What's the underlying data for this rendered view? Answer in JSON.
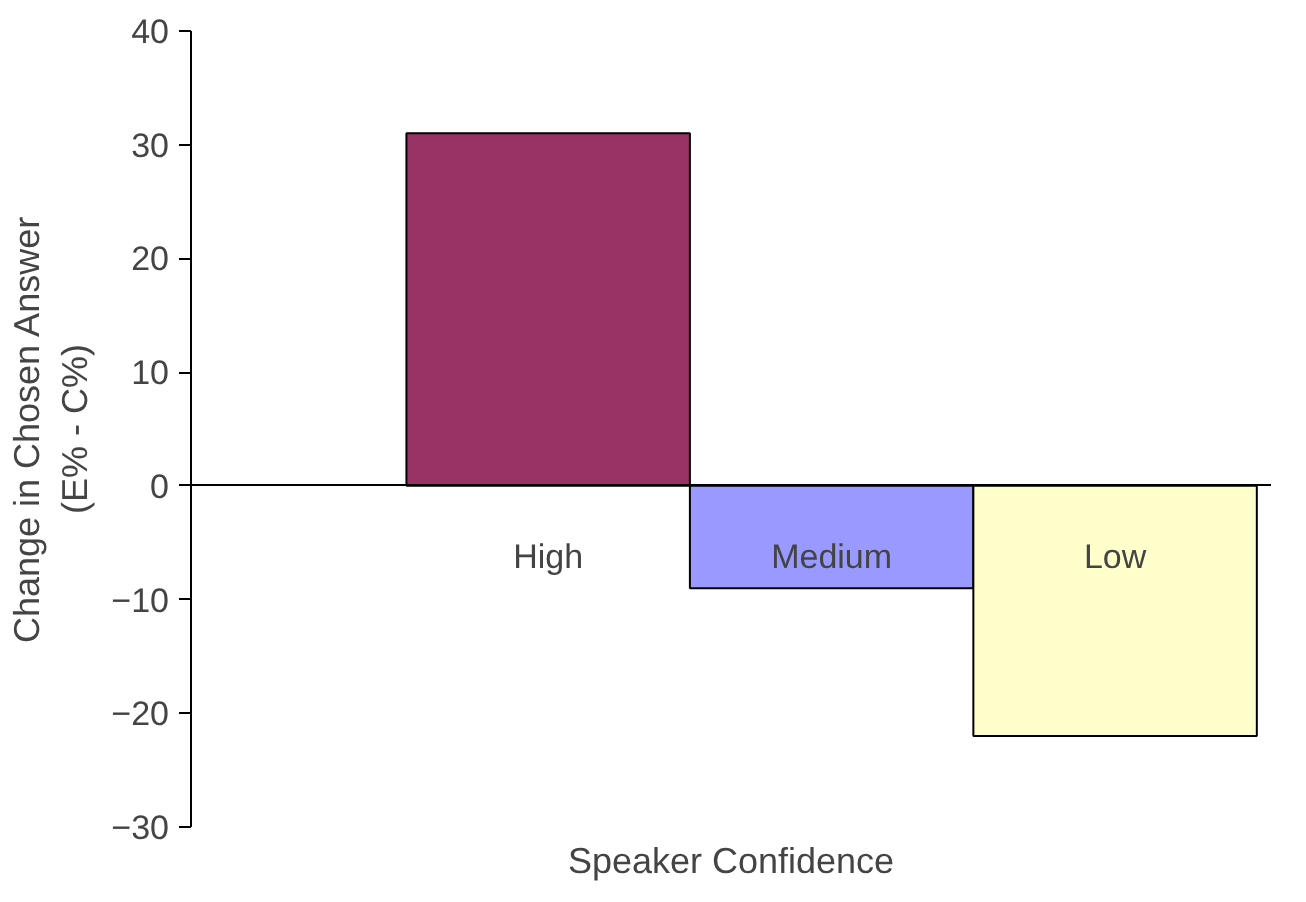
{
  "chart_data": {
    "type": "bar",
    "categories": [
      "High",
      "Medium",
      "Low"
    ],
    "values": [
      31,
      -9,
      -22
    ],
    "colors": [
      "#993366",
      "#9999ff",
      "#ffffcc"
    ],
    "xlabel": "Speaker Confidence",
    "ylabel": "Change in Chosen Answer\n(E% - C%)",
    "ylim": [
      -30,
      40
    ],
    "yticks": [
      -30,
      -20,
      -10,
      0,
      10,
      20,
      30,
      40
    ],
    "grid": false
  }
}
